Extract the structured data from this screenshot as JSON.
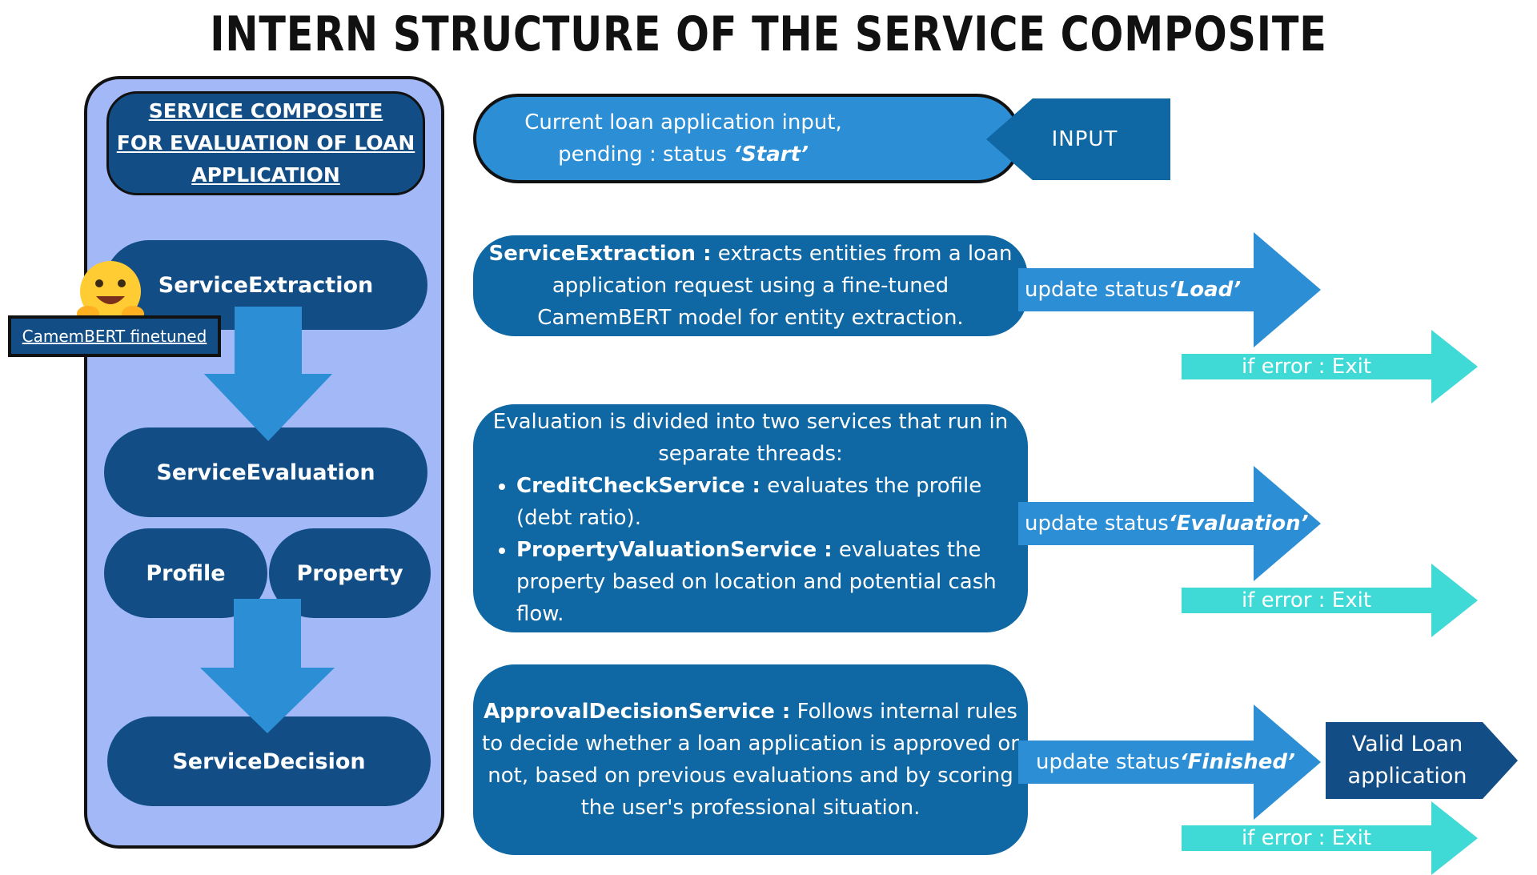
{
  "title": "INTERN STRUCTURE OF THE SERVICE COMPOSITE",
  "panel": {
    "header_lines": [
      "SERVICE COMPOSITE",
      "FOR EVALUATION OF LOAN",
      "APPLICATION"
    ],
    "extraction": "ServiceExtraction",
    "evaluation": "ServiceEvaluation",
    "profile": "Profile",
    "property": "Property",
    "decision": "ServiceDecision",
    "model_label": "CamemBERT finetuned"
  },
  "input": {
    "line1": "Current loan application input,",
    "line2_prefix": "pending : status ",
    "line2_status": "‘Start’",
    "tag": "INPUT"
  },
  "extraction_box": {
    "name": "ServiceExtraction :",
    "text_a": " extracts entities from a loan",
    "text_b": "application request using a fine-tuned",
    "text_c": "CamemBERT model for entity extraction."
  },
  "evaluation_box": {
    "intro": "Evaluation is divided into two services that run in separate threads:",
    "items": [
      {
        "name": "CreditCheckService :",
        "text": " evaluates the profile (debt ratio)."
      },
      {
        "name": "PropertyValuationService  :",
        "text": " evaluates the property based on location and potential cash flow."
      }
    ]
  },
  "decision_box": {
    "name": "ApprovalDecisionService :",
    "text": " Follows internal rules to decide whether a loan application is approved or not, based on previous evaluations and by scoring the user's professional situation."
  },
  "status": {
    "prefix": "update status ",
    "load": "‘Load’",
    "evaluation": "‘Evaluation’",
    "finished": "‘Finished’"
  },
  "error_label": "if error : Exit",
  "valid": {
    "line1": "Valid Loan",
    "line2": "application"
  },
  "colors": {
    "dark_blue": "#124e85",
    "mid_blue": "#0f67a3",
    "bright_blue": "#2c8fd6",
    "cyan": "#3fd9d6",
    "panel_bg": "#a3b8f7",
    "hug_yellow": "#ffcc33"
  }
}
